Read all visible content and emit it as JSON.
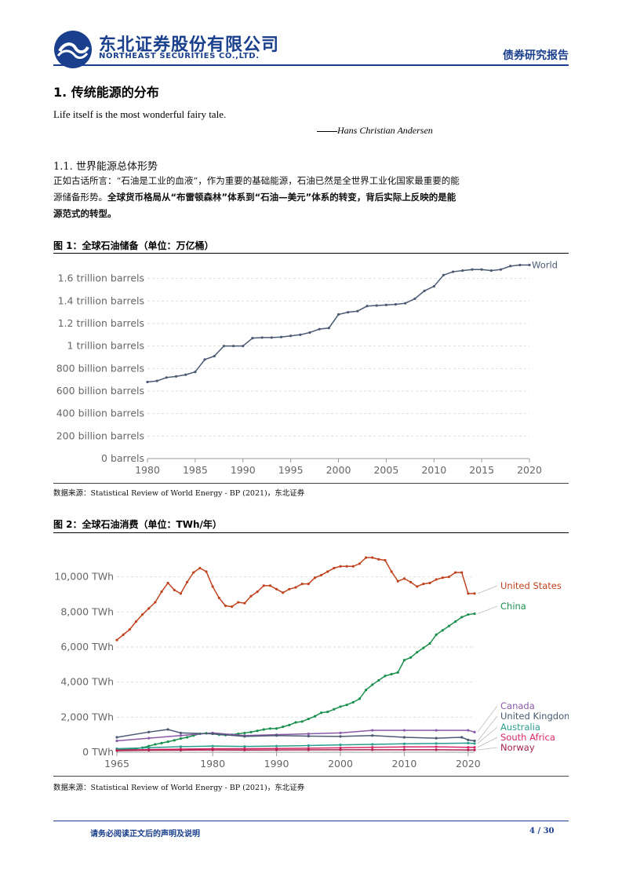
{
  "header": {
    "company_cn": "东北证券股份有限公司",
    "company_en": "NORTHEAST SECURITIES CO.,LTD.",
    "report_type": "债券研究报告",
    "brand_color": "#1a3f8c"
  },
  "section": {
    "title": "1.  传统能源的分布",
    "quote": "Life itself is the most wonderful fairy tale.",
    "quote_author": "Hans Christian Andersen",
    "subsection_title": "1.1.   世界能源总体形势",
    "para_normal": "正如古话所言：“石油是工业的血液”，作为重要的基础能源，石油已然是全世界工业化国家最重要的能源储备形势。",
    "para_bold": "全球货币格局从“布雷顿森林”体系到“石油—美元”体系的转变，背后实际上反映的是能源范式的转型。"
  },
  "figure1": {
    "title": "图 1：全球石油储备（单位：万亿桶）",
    "source": "数据来源：Statistical Review of World Energy - BP (2021)，东北证券"
  },
  "figure2": {
    "title": "图 2：全球石油消费（单位：TWh/年）",
    "source": "数据来源：Statistical Review of World Energy - BP (2021)，东北证券"
  },
  "footer": {
    "disclaimer": "请务必阅读正文后的声明及说明",
    "page": "4 / 30"
  },
  "chart_data": [
    {
      "type": "line",
      "title": "",
      "xlabel": "",
      "ylabel": "",
      "ylim": [
        0,
        1.8
      ],
      "xlim": [
        1980,
        2020
      ],
      "grid": true,
      "y_tick_values": [
        0,
        0.2,
        0.4,
        0.6,
        0.8,
        1.0,
        1.2,
        1.4,
        1.6
      ],
      "y_tick_labels": [
        "0 barrels",
        "200 billion barrels",
        "400 billion barrels",
        "600 billion barrels",
        "800 billion barrels",
        "1 trillion barrels",
        "1.2 trillion barrels",
        "1.4 trillion barrels",
        "1.6 trillion barrels"
      ],
      "x_ticks": [
        1980,
        1985,
        1990,
        1995,
        2000,
        2005,
        2010,
        2015,
        2020
      ],
      "series": [
        {
          "name": "World",
          "color": "#4a5a73",
          "x": [
            1980,
            1981,
            1982,
            1983,
            1984,
            1985,
            1986,
            1987,
            1988,
            1989,
            1990,
            1991,
            1992,
            1993,
            1994,
            1995,
            1996,
            1997,
            1998,
            1999,
            2000,
            2001,
            2002,
            2003,
            2004,
            2005,
            2006,
            2007,
            2008,
            2009,
            2010,
            2011,
            2012,
            2013,
            2014,
            2015,
            2016,
            2017,
            2018,
            2019,
            2020
          ],
          "values": [
            0.68,
            0.69,
            0.72,
            0.73,
            0.745,
            0.77,
            0.88,
            0.91,
            1.0,
            1.0,
            1.0,
            1.07,
            1.075,
            1.075,
            1.08,
            1.09,
            1.1,
            1.12,
            1.15,
            1.16,
            1.28,
            1.3,
            1.31,
            1.355,
            1.36,
            1.365,
            1.37,
            1.38,
            1.42,
            1.49,
            1.53,
            1.63,
            1.66,
            1.67,
            1.68,
            1.68,
            1.67,
            1.68,
            1.71,
            1.72,
            1.72
          ]
        }
      ]
    },
    {
      "type": "line",
      "title": "",
      "xlabel": "",
      "ylabel": "",
      "ylim": [
        0,
        12000
      ],
      "xlim": [
        1965,
        2021
      ],
      "grid": true,
      "y_tick_values": [
        0,
        2000,
        4000,
        6000,
        8000,
        10000
      ],
      "y_tick_labels": [
        "0 TWh",
        "2,000 TWh",
        "4,000 TWh",
        "6,000 TWh",
        "8,000 TWh",
        "10,000 TWh"
      ],
      "x_ticks": [
        1965,
        1980,
        1990,
        2000,
        2010,
        2020
      ],
      "series": [
        {
          "name": "United States",
          "color": "#c0441f",
          "x": [
            1965,
            1966,
            1967,
            1968,
            1969,
            1970,
            1971,
            1972,
            1973,
            1974,
            1975,
            1976,
            1977,
            1978,
            1979,
            1980,
            1981,
            1982,
            1983,
            1984,
            1985,
            1986,
            1987,
            1988,
            1989,
            1990,
            1991,
            1992,
            1993,
            1994,
            1995,
            1996,
            1997,
            1998,
            1999,
            2000,
            2001,
            2002,
            2003,
            2004,
            2005,
            2006,
            2007,
            2008,
            2009,
            2010,
            2011,
            2012,
            2013,
            2014,
            2015,
            2016,
            2017,
            2018,
            2019,
            2020,
            2021
          ],
          "values": [
            6400,
            6700,
            7000,
            7450,
            7850,
            8200,
            8550,
            9150,
            9650,
            9250,
            9050,
            9700,
            10250,
            10500,
            10300,
            9450,
            8800,
            8350,
            8300,
            8550,
            8500,
            8900,
            9150,
            9500,
            9500,
            9300,
            9100,
            9300,
            9400,
            9600,
            9600,
            9950,
            10100,
            10300,
            10500,
            10600,
            10600,
            10600,
            10750,
            11100,
            11100,
            11000,
            10950,
            10300,
            9750,
            9900,
            9700,
            9450,
            9600,
            9650,
            9850,
            9950,
            10000,
            10250,
            10250,
            9050,
            9050
          ]
        },
        {
          "name": "China",
          "color": "#1b8f4e",
          "x": [
            1965,
            1966,
            1967,
            1968,
            1969,
            1970,
            1971,
            1972,
            1973,
            1974,
            1975,
            1976,
            1977,
            1978,
            1979,
            1980,
            1981,
            1982,
            1983,
            1984,
            1985,
            1986,
            1987,
            1988,
            1989,
            1990,
            1991,
            1992,
            1993,
            1994,
            1995,
            1996,
            1997,
            1998,
            1999,
            2000,
            2001,
            2002,
            2003,
            2004,
            2005,
            2006,
            2007,
            2008,
            2009,
            2010,
            2011,
            2012,
            2013,
            2014,
            2015,
            2016,
            2017,
            2018,
            2019,
            2020,
            2021
          ],
          "values": [
            150,
            170,
            180,
            200,
            260,
            350,
            450,
            520,
            600,
            680,
            780,
            850,
            950,
            1050,
            1080,
            1050,
            1000,
            980,
            1000,
            1050,
            1100,
            1150,
            1220,
            1300,
            1350,
            1350,
            1450,
            1550,
            1700,
            1750,
            1900,
            2050,
            2250,
            2300,
            2450,
            2600,
            2700,
            2850,
            3050,
            3550,
            3850,
            4100,
            4350,
            4450,
            4550,
            5250,
            5400,
            5700,
            5950,
            6200,
            6700,
            6950,
            7200,
            7450,
            7700,
            7850,
            7900
          ]
        },
        {
          "name": "Canada",
          "color": "#8a5aa8",
          "x": [
            1965,
            1970,
            1975,
            1980,
            1985,
            1990,
            1995,
            2000,
            2005,
            2010,
            2015,
            2020,
            2021
          ],
          "values": [
            650,
            800,
            950,
            1100,
            950,
            1000,
            1050,
            1100,
            1250,
            1250,
            1250,
            1250,
            1150
          ]
        },
        {
          "name": "United Kingdom",
          "color": "#4a5a73",
          "x": [
            1965,
            1970,
            1973,
            1975,
            1980,
            1985,
            1990,
            1995,
            2000,
            2005,
            2010,
            2015,
            2019,
            2020,
            2021
          ],
          "values": [
            850,
            1150,
            1300,
            1100,
            1050,
            900,
            950,
            920,
            900,
            950,
            850,
            800,
            850,
            700,
            650
          ]
        },
        {
          "name": "Australia",
          "color": "#2a9d8f",
          "x": [
            1965,
            1970,
            1975,
            1980,
            1985,
            1990,
            1995,
            2000,
            2005,
            2010,
            2015,
            2020,
            2021
          ],
          "values": [
            200,
            260,
            320,
            350,
            330,
            350,
            380,
            420,
            450,
            480,
            500,
            520,
            500
          ]
        },
        {
          "name": "South Africa",
          "color": "#d62868",
          "x": [
            1965,
            1970,
            1975,
            1980,
            1985,
            1990,
            1995,
            2000,
            2005,
            2010,
            2015,
            2020,
            2021
          ],
          "values": [
            120,
            150,
            180,
            200,
            200,
            210,
            230,
            250,
            280,
            300,
            310,
            280,
            280
          ]
        },
        {
          "name": "Norway",
          "color": "#a8234a",
          "x": [
            1965,
            1970,
            1975,
            1980,
            1985,
            1990,
            1995,
            2000,
            2005,
            2010,
            2015,
            2020,
            2021
          ],
          "values": [
            90,
            110,
            120,
            130,
            125,
            130,
            135,
            140,
            140,
            140,
            140,
            130,
            130
          ]
        }
      ]
    }
  ]
}
